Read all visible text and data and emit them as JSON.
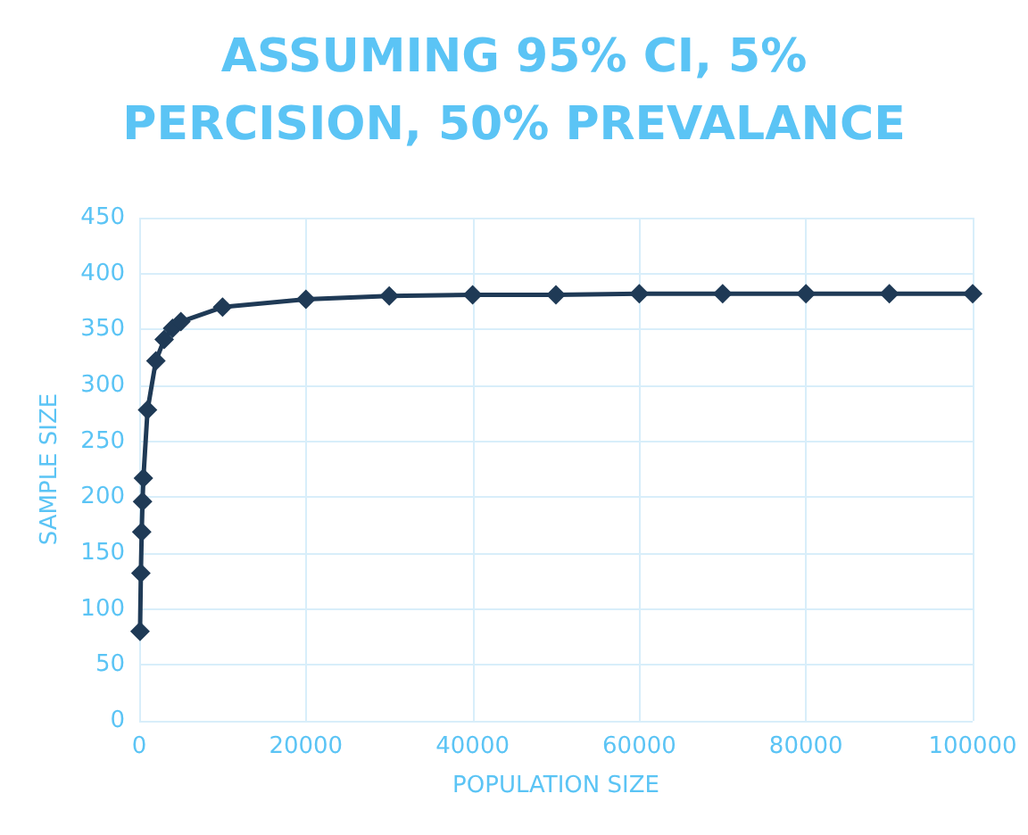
{
  "chart_data": {
    "type": "line",
    "title": "ASSUMING 95% CI, 5%\nPERCISION, 50% PREVALANCE",
    "xlabel": "POPULATION SIZE",
    "ylabel": "SAMPLE SIZE",
    "x": [
      100,
      200,
      300,
      400,
      500,
      1000,
      2000,
      3000,
      4000,
      5000,
      10000,
      20000,
      30000,
      40000,
      50000,
      60000,
      70000,
      80000,
      90000,
      100000
    ],
    "series": [
      {
        "color": "#1f3a56",
        "values": [
          80,
          132,
          169,
          196,
          217,
          278,
          322,
          341,
          351,
          357,
          370,
          377,
          380,
          381,
          381,
          382,
          382,
          382,
          382,
          382
        ]
      }
    ],
    "xlim": [
      0,
      100000
    ],
    "xticks": [
      0,
      20000,
      40000,
      60000,
      80000,
      100000
    ],
    "ylim": [
      0,
      450
    ],
    "yticks": [
      0,
      50,
      100,
      150,
      200,
      250,
      300,
      350,
      400,
      450
    ],
    "grid": true,
    "marker": "diamond",
    "line_style": "solid"
  }
}
